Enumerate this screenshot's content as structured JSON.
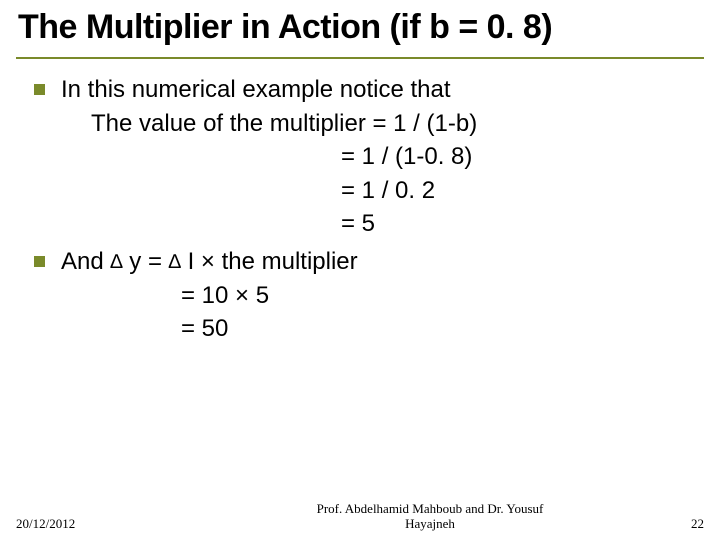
{
  "colors": {
    "accent": "#7a8a2a",
    "text": "#000000",
    "bg": "#ffffff"
  },
  "title": "The Multiplier in Action (if b = 0. 8)",
  "bullets": [
    {
      "lead": "In this numerical example notice that",
      "sub": "The value of the multiplier = 1 / (1-b)",
      "calc": [
        "= 1 / (1-0. 8)",
        "= 1 / 0. 2",
        "= 5"
      ]
    },
    {
      "lead_pre": "And ",
      "lead_delta1": "∆",
      "lead_mid": " y = ",
      "lead_delta2": "∆",
      "lead_post": " I × the multiplier",
      "calc": [
        "= 10 × 5",
        "= 50"
      ]
    }
  ],
  "footer": {
    "date": "20/12/2012",
    "authors_line1": "Prof. Abdelhamid Mahboub and Dr. Yousuf",
    "authors_line2": "Hayajneh",
    "page": "22"
  }
}
